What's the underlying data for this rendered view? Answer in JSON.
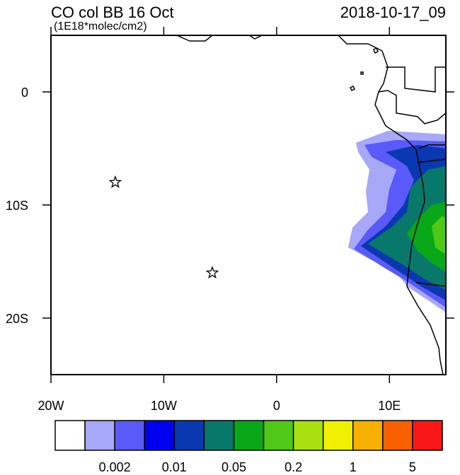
{
  "map": {
    "title": "CO col BB 16 Oct",
    "units": "(1E18*molec/cm2)",
    "timestamp": "2018-10-17_09",
    "xlim": [
      -20,
      15
    ],
    "ylim": [
      -25,
      5
    ],
    "xticks": [
      {
        "value": -20,
        "label": "20W"
      },
      {
        "value": -10,
        "label": "10W"
      },
      0,
      {
        "value": 10,
        "label": "10E"
      }
    ],
    "yticks": [
      0,
      {
        "value": -10,
        "label": "10S"
      },
      {
        "value": -20,
        "label": "20S"
      }
    ],
    "markers": [
      {
        "lon": -14.3,
        "lat": -8
      },
      {
        "lon": -5.7,
        "lat": -16
      }
    ],
    "colorbar": {
      "colors": [
        "#ffffff",
        "#a8a8f8",
        "#5a5af8",
        "#0000f0",
        "#0a38b0",
        "#08786a",
        "#08a818",
        "#50c818",
        "#a8e010",
        "#f0f000",
        "#f8b000",
        "#f86000",
        "#f81818"
      ],
      "labels": [
        0.002,
        0.01,
        0.05,
        0.2,
        1,
        5
      ]
    }
  }
}
